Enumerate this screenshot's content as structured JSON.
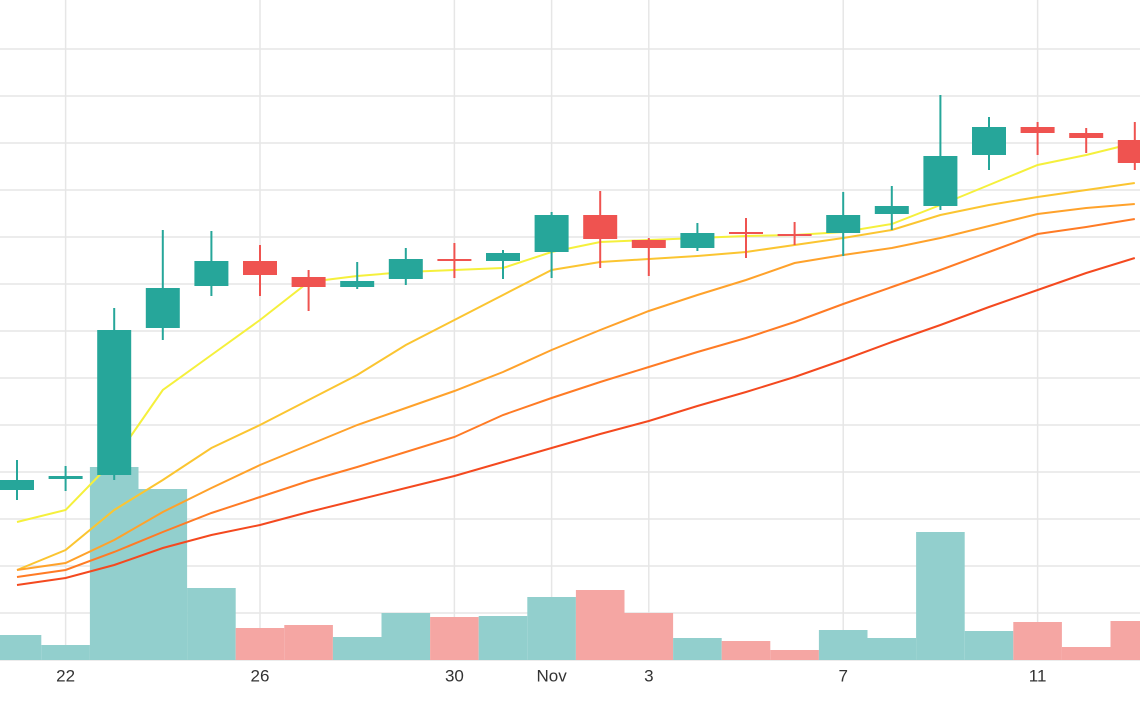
{
  "chart_data": {
    "type": "candlestick",
    "categories": [
      null,
      "22",
      null,
      null,
      null,
      "26",
      null,
      null,
      null,
      "30",
      null,
      "Nov",
      null,
      "3",
      null,
      null,
      null,
      "7",
      null,
      null,
      null,
      "11",
      null,
      null
    ],
    "open": [
      170,
      181,
      185,
      332,
      374,
      399,
      383,
      373,
      381,
      401,
      399,
      408,
      445,
      420,
      412,
      428,
      426,
      427,
      446,
      454,
      505,
      533,
      527,
      520
    ],
    "high": [
      200,
      194,
      352,
      430,
      429,
      415,
      390,
      398,
      412,
      417,
      410,
      448,
      469,
      422,
      437,
      442,
      438,
      468,
      474,
      565,
      543,
      538,
      532,
      538
    ],
    "low": [
      160,
      169,
      180,
      320,
      364,
      364,
      349,
      371,
      375,
      382,
      381,
      382,
      392,
      384,
      409,
      402,
      415,
      404,
      430,
      450,
      490,
      505,
      507,
      490
    ],
    "close": [
      180,
      184,
      330,
      372,
      399,
      385,
      373,
      379,
      401,
      399,
      407,
      445,
      421,
      412,
      427,
      426,
      425,
      445,
      454,
      504,
      533,
      527,
      522,
      497
    ],
    "volume": [
      25,
      15,
      193,
      171,
      72,
      32,
      35,
      23,
      47,
      43,
      44,
      63,
      70,
      47,
      22,
      19,
      10,
      30,
      22,
      128,
      29,
      38,
      13,
      39
    ],
    "up_color": "#26a69a",
    "down_color": "#ef5350",
    "volume_up_color": "#92cfcd",
    "volume_down_color": "#f5a6a3",
    "series": [
      {
        "color": "#f5f03c",
        "values": [
          138,
          150,
          200,
          270,
          305,
          340,
          378,
          384,
          388,
          390,
          392,
          408,
          418,
          420,
          422,
          424,
          425,
          428,
          436,
          455,
          475,
          495,
          505,
          517
        ]
      },
      {
        "color": "#fbc531",
        "values": [
          90,
          110,
          150,
          180,
          212,
          235,
          260,
          285,
          315,
          340,
          365,
          390,
          398,
          401,
          404,
          408,
          415,
          422,
          430,
          445,
          455,
          463,
          470,
          477
        ]
      },
      {
        "color": "#ffa22b",
        "values": [
          90,
          97,
          120,
          148,
          172,
          195,
          215,
          235,
          252,
          269,
          288,
          310,
          330,
          349,
          365,
          380,
          397,
          405,
          412,
          422,
          434,
          446,
          452,
          456
        ]
      },
      {
        "color": "#ff7b25",
        "values": [
          83,
          90,
          108,
          128,
          147,
          163,
          179,
          193,
          208,
          223,
          245,
          262,
          278,
          293,
          308,
          322,
          338,
          356,
          373,
          390,
          408,
          426,
          433,
          441
        ]
      },
      {
        "color": "#f4491f",
        "values": [
          75,
          82,
          95,
          112,
          125,
          135,
          148,
          160,
          172,
          184,
          198,
          212,
          226,
          239,
          254,
          268,
          283,
          300,
          318,
          335,
          353,
          370,
          387,
          402
        ]
      }
    ],
    "ylim": [
      0,
      660
    ],
    "yticks": [
      0,
      47,
      94,
      141,
      188,
      235,
      282,
      329,
      376,
      423,
      470,
      517,
      564,
      611
    ],
    "grid": true
  }
}
